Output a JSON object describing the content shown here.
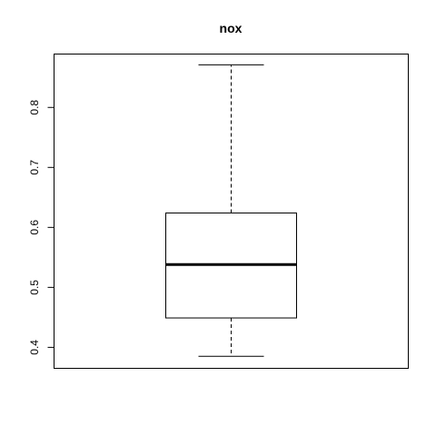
{
  "chart_data": {
    "type": "boxplot",
    "title": "nox",
    "xlabel": "",
    "ylabel": "",
    "ylim": [
      0.365,
      0.889
    ],
    "yticks": [
      0.4,
      0.5,
      0.6,
      0.7,
      0.8
    ],
    "ytick_labels": [
      "0.4",
      "0.5",
      "0.6",
      "0.7",
      "0.8"
    ],
    "box": {
      "whisker_low": 0.385,
      "q1": 0.449,
      "median": 0.538,
      "q3": 0.624,
      "whisker_high": 0.871
    },
    "grid": false,
    "legend": "none"
  }
}
